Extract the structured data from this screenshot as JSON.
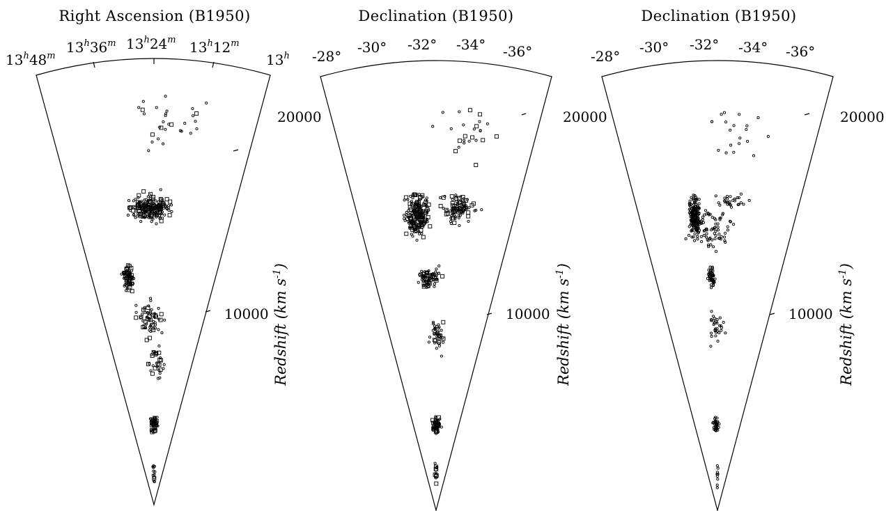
{
  "chart_data": [
    {
      "type": "scatter",
      "title": "Right Ascension (B1950)",
      "angle_ticks": [
        "13h48m",
        "13h36m",
        "13h24m",
        "13h12m",
        "13h"
      ],
      "radial_ticks": [
        "20000",
        "10000"
      ],
      "radial_label": "Redshift (km s-1)",
      "radial_range": [
        0,
        23000
      ],
      "markers": [
        "circle",
        "square"
      ]
    },
    {
      "type": "scatter",
      "title": "Declination (B1950)",
      "angle_ticks": [
        "-28°",
        "-30°",
        "-32°",
        "-34°",
        "-36°"
      ],
      "radial_ticks": [
        "20000",
        "10000"
      ],
      "radial_label": "Redshift (km s-1)",
      "radial_range": [
        0,
        23000
      ],
      "markers": [
        "circle",
        "square"
      ]
    },
    {
      "type": "scatter",
      "title": "Declination (B1950)",
      "angle_ticks": [
        "-28°",
        "-30°",
        "-32°",
        "-34°",
        "-36°"
      ],
      "radial_ticks": [
        "20000",
        "10000"
      ],
      "radial_label": "Redshift (km s-1)",
      "radial_range": [
        0,
        23000
      ],
      "markers": [
        "circle"
      ]
    }
  ]
}
